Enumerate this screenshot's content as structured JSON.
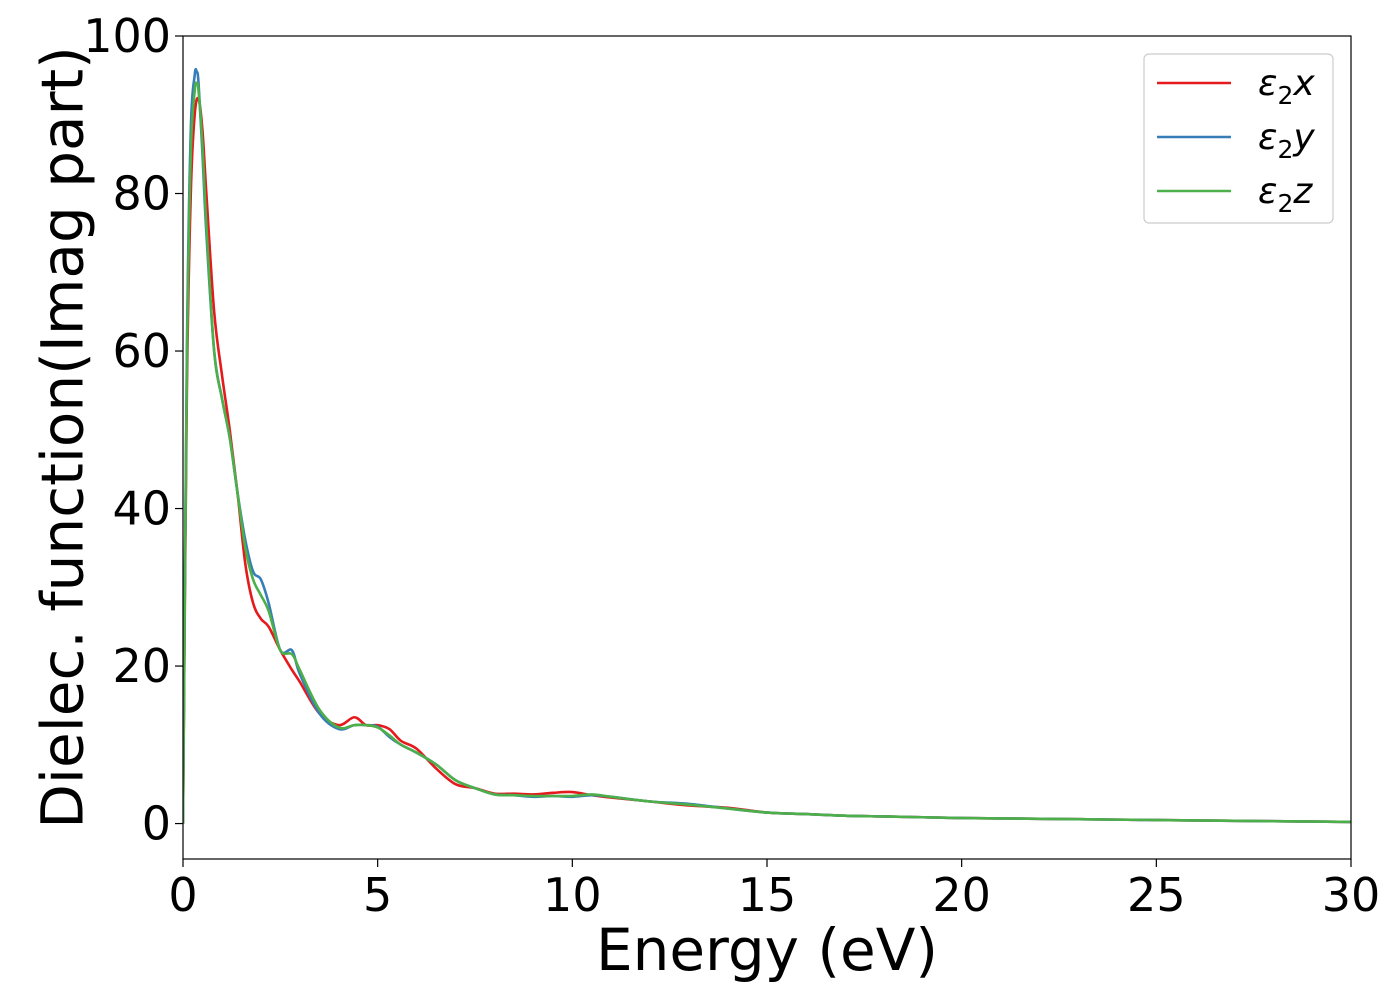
{
  "chart_data": {
    "type": "line",
    "title": "",
    "xlabel": "Energy (eV)",
    "ylabel": "Dielec. function(Imag part)",
    "xlim": [
      0,
      30
    ],
    "ylim": [
      -4.5,
      100
    ],
    "xticks": [
      0,
      5,
      10,
      15,
      20,
      25,
      30
    ],
    "yticks": [
      0,
      20,
      40,
      60,
      80,
      100
    ],
    "legend_position": "top-right",
    "grid": false,
    "series": [
      {
        "name": "ε₂x",
        "legend_base": "ε",
        "legend_sub": "2",
        "legend_var": "x",
        "color": "#e41a1c",
        "x": [
          0,
          0.1,
          0.2,
          0.3,
          0.4,
          0.5,
          0.6,
          0.8,
          1.0,
          1.2,
          1.4,
          1.6,
          1.8,
          2.0,
          2.2,
          2.5,
          2.8,
          3.0,
          3.5,
          4.0,
          4.4,
          4.7,
          5.0,
          5.3,
          5.6,
          6.0,
          6.5,
          7.0,
          7.5,
          8.0,
          8.5,
          9.0,
          9.5,
          10.0,
          10.5,
          11.0,
          12.0,
          13.0,
          14.0,
          15.0,
          16.0,
          17.0,
          18.0,
          19.0,
          20.0,
          21.0,
          22.0,
          23.0,
          24.0,
          25.0,
          26.0,
          27.0,
          28.0,
          29.0,
          30.0
        ],
        "y": [
          0,
          55,
          80,
          90,
          92,
          88,
          80,
          65,
          57,
          50,
          42,
          33,
          28,
          26,
          25,
          22,
          19.5,
          18,
          14,
          12.5,
          13.5,
          12.5,
          12.5,
          12,
          10.5,
          9.5,
          7,
          5,
          4.5,
          3.8,
          3.8,
          3.7,
          3.9,
          4,
          3.6,
          3.3,
          2.8,
          2.3,
          2.0,
          1.4,
          1.2,
          1.0,
          0.9,
          0.8,
          0.7,
          0.65,
          0.6,
          0.55,
          0.5,
          0.45,
          0.4,
          0.35,
          0.3,
          0.25,
          0.2
        ]
      },
      {
        "name": "ε₂y",
        "legend_base": "ε",
        "legend_sub": "2",
        "legend_var": "y",
        "color": "#377eb8",
        "x": [
          0,
          0.1,
          0.2,
          0.3,
          0.35,
          0.4,
          0.5,
          0.6,
          0.8,
          1.0,
          1.2,
          1.4,
          1.6,
          1.8,
          2.0,
          2.2,
          2.5,
          2.8,
          3.0,
          3.5,
          4.0,
          4.4,
          4.7,
          5.0,
          5.3,
          5.6,
          6.0,
          6.5,
          7.0,
          7.5,
          8.0,
          8.5,
          9.0,
          9.5,
          10.0,
          10.5,
          11.0,
          12.0,
          13.0,
          14.0,
          15.0,
          16.0,
          17.0,
          18.0,
          19.0,
          20.0,
          21.0,
          22.0,
          23.0,
          24.0,
          25.0,
          26.0,
          27.0,
          28.0,
          29.0,
          30.0
        ],
        "y": [
          0,
          60,
          88,
          95,
          95.5,
          94,
          85,
          75,
          60,
          54,
          49,
          42,
          36,
          32,
          31,
          28,
          22,
          22,
          19,
          14,
          12,
          12.5,
          12.5,
          12.3,
          11,
          10,
          9,
          7.5,
          5.5,
          4.5,
          3.7,
          3.6,
          3.4,
          3.5,
          3.4,
          3.6,
          3.4,
          2.8,
          2.5,
          1.9,
          1.4,
          1.2,
          1.0,
          0.9,
          0.8,
          0.7,
          0.65,
          0.6,
          0.55,
          0.5,
          0.45,
          0.4,
          0.35,
          0.3,
          0.25,
          0.2
        ]
      },
      {
        "name": "ε₂z",
        "legend_base": "ε",
        "legend_sub": "2",
        "legend_var": "z",
        "color": "#4daf4a",
        "x": [
          0,
          0.1,
          0.2,
          0.3,
          0.35,
          0.4,
          0.5,
          0.6,
          0.8,
          1.0,
          1.2,
          1.4,
          1.6,
          1.8,
          2.0,
          2.2,
          2.5,
          2.8,
          3.0,
          3.5,
          4.0,
          4.4,
          4.7,
          5.0,
          5.3,
          5.6,
          6.0,
          6.5,
          7.0,
          7.5,
          8.0,
          8.5,
          9.0,
          9.5,
          10.0,
          10.5,
          11.0,
          12.0,
          13.0,
          14.0,
          15.0,
          16.0,
          17.0,
          18.0,
          19.0,
          20.0,
          21.0,
          22.0,
          23.0,
          24.0,
          25.0,
          26.0,
          27.0,
          28.0,
          29.0,
          30.0
        ],
        "y": [
          0,
          58,
          85,
          93,
          94,
          93,
          86,
          76,
          60,
          54,
          49,
          42,
          35,
          31,
          29,
          27,
          22,
          21.5,
          19.5,
          14.5,
          12.2,
          12.5,
          12.5,
          12.2,
          11.2,
          10,
          9,
          7.5,
          5.5,
          4.5,
          3.7,
          3.6,
          3.5,
          3.5,
          3.5,
          3.7,
          3.4,
          2.8,
          2.4,
          1.9,
          1.4,
          1.2,
          1.0,
          0.9,
          0.8,
          0.7,
          0.65,
          0.6,
          0.55,
          0.5,
          0.45,
          0.4,
          0.35,
          0.3,
          0.25,
          0.2
        ]
      }
    ]
  }
}
